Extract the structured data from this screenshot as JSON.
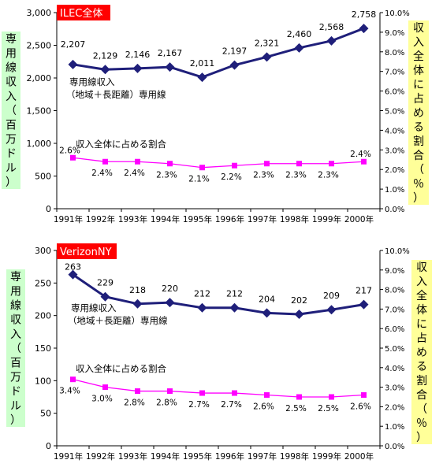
{
  "chart_data": [
    {
      "type": "line",
      "title": "ILEC全体",
      "categories": [
        "1991年",
        "1992年",
        "1993年",
        "1994年",
        "1995年",
        "1996年",
        "1997年",
        "1998年",
        "1999年",
        "2000年"
      ],
      "ylabel": "専用線収入（百万ドル）",
      "y2label": "収入全体に占める割合（％）",
      "ylim": [
        0,
        3000
      ],
      "yticks": [
        "0",
        "500",
        "1,000",
        "1,500",
        "2,000",
        "2,500",
        "3,000"
      ],
      "y2lim": [
        0,
        10
      ],
      "y2ticks": [
        "0.0%",
        "1.0%",
        "2.0%",
        "3.0%",
        "4.0%",
        "5.0%",
        "6.0%",
        "7.0%",
        "8.0%",
        "9.0%",
        "10.0%"
      ],
      "series": [
        {
          "name": "専用線収入（地域＋長距離）専用線",
          "name_lines": [
            "専用線収入",
            "（地域＋長距離）専用線"
          ],
          "axis": "left",
          "color": "#1f1f7a",
          "values": [
            2207,
            2129,
            2146,
            2167,
            2011,
            2197,
            2321,
            2460,
            2568,
            2758
          ],
          "labels": [
            "2,207",
            "2,129",
            "2,146",
            "2,167",
            "2,011",
            "2,197",
            "2,321",
            "2,460",
            "2,568",
            "2,758"
          ]
        },
        {
          "name": "収入全体に占める割合",
          "axis": "right",
          "color": "#ff00ff",
          "values": [
            2.6,
            2.4,
            2.4,
            2.3,
            2.1,
            2.2,
            2.3,
            2.3,
            2.3,
            2.4
          ],
          "labels": [
            "2.6%",
            "2.4%",
            "2.4%",
            "2.3%",
            "2.1%",
            "2.2%",
            "2.3%",
            "2.3%",
            "2.3%",
            "2.4%"
          ]
        }
      ]
    },
    {
      "type": "line",
      "title": "VerizonNY",
      "categories": [
        "1991年",
        "1992年",
        "1993年",
        "1994年",
        "1995年",
        "1996年",
        "1997年",
        "1998年",
        "1999年",
        "2000年"
      ],
      "ylabel": "専用線収入（百万ドル）",
      "y2label": "収入全体に占める割合（％）",
      "ylim": [
        0,
        300
      ],
      "yticks": [
        "0",
        "50",
        "100",
        "150",
        "200",
        "250",
        "300"
      ],
      "y2lim": [
        0,
        10
      ],
      "y2ticks": [
        "0.0%",
        "1.0%",
        "2.0%",
        "3.0%",
        "4.0%",
        "5.0%",
        "6.0%",
        "7.0%",
        "8.0%",
        "9.0%",
        "10.0%"
      ],
      "series": [
        {
          "name": "専用線収入（地域＋長距離）専用線",
          "name_lines": [
            "専用線収入",
            "（地域＋長距離）専用線"
          ],
          "axis": "left",
          "color": "#1f1f7a",
          "values": [
            263,
            229,
            218,
            220,
            212,
            212,
            204,
            202,
            209,
            217
          ],
          "labels": [
            "263",
            "229",
            "218",
            "220",
            "212",
            "212",
            "204",
            "202",
            "209",
            "217"
          ]
        },
        {
          "name": "収入全体に占める割合",
          "axis": "right",
          "color": "#ff00ff",
          "values": [
            3.4,
            3.0,
            2.8,
            2.8,
            2.7,
            2.7,
            2.6,
            2.5,
            2.5,
            2.6
          ],
          "labels": [
            "3.4%",
            "3.0%",
            "2.8%",
            "2.8%",
            "2.7%",
            "2.7%",
            "2.6%",
            "2.5%",
            "2.5%",
            "2.6%"
          ]
        }
      ]
    }
  ],
  "style": {
    "title_bg": "#ff0000",
    "title_fg": "#ffffff",
    "left_axis_label_bg": "#ccffcc",
    "right_axis_label_bg": "#ffff99",
    "axis_color": "#000000"
  }
}
